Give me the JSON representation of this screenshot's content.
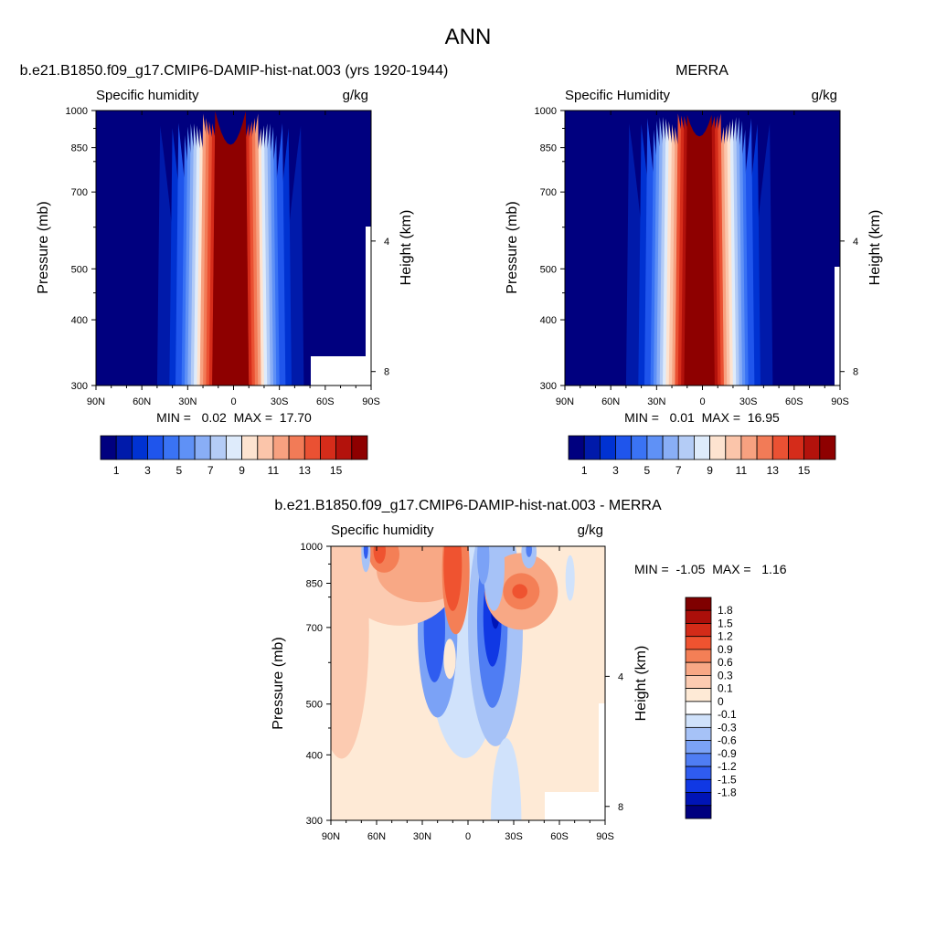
{
  "page": {
    "title": "ANN"
  },
  "colors": {
    "abs_fill": [
      "#00007f",
      "#001aaa",
      "#0032d2",
      "#1f55ec",
      "#3a73f4",
      "#5f91f6",
      "#89aef6",
      "#b4ccf6",
      "#deebfb",
      "#fde3d0",
      "#fbc5aa",
      "#f7a180",
      "#f27b57",
      "#ea5133",
      "#d52c1a",
      "#b3120c",
      "#8e0000"
    ],
    "diff_fill": [
      "#00007f",
      "#0014b6",
      "#1038e4",
      "#2f5cf0",
      "#4f7df3",
      "#7ba2f6",
      "#a6c2f7",
      "#d0e2fb",
      "#ffffff",
      "#feead6",
      "#fccbb1",
      "#f8a885",
      "#f47f56",
      "#ef5330",
      "#d32b18",
      "#ab0f0a",
      "#7f0000"
    ]
  },
  "chart_data": [
    {
      "type": "heatmap",
      "title": "b.e21.B1850.f09_g17.CMIP6-DAMIP-hist-nat.003 (yrs 1920-1944)",
      "left_label": "Specific humidity",
      "right_label": "g/kg",
      "ylabel": "Pressure (mb)",
      "y2label": "Height (km)",
      "x_ticks": [
        "90N",
        "60N",
        "30N",
        "0",
        "30S",
        "60S",
        "90S"
      ],
      "y_ticks": [
        "300",
        "400",
        "500",
        "700",
        "850",
        "1000"
      ],
      "y2_ticks": [
        "8",
        "4"
      ],
      "stats": "MIN =   0.02  MAX =  17.70",
      "levels": [
        "1",
        "3",
        "5",
        "7",
        "9",
        "11",
        "13",
        "15"
      ],
      "min": 0.02,
      "max": 17.7,
      "peak": 17.7,
      "peak_lat": 2,
      "xlim": [
        90,
        -90
      ],
      "ylim": [
        1000,
        300
      ]
    },
    {
      "type": "heatmap",
      "title": "MERRA",
      "left_label": "Specific Humidity",
      "right_label": "g/kg",
      "ylabel": "Pressure (mb)",
      "y2label": "Height (km)",
      "x_ticks": [
        "90N",
        "60N",
        "30N",
        "0",
        "30S",
        "60S",
        "90S"
      ],
      "y_ticks": [
        "300",
        "400",
        "500",
        "700",
        "850",
        "1000"
      ],
      "y2_ticks": [
        "8",
        "4"
      ],
      "stats": "MIN =   0.01  MAX =  16.95",
      "levels": [
        "1",
        "3",
        "5",
        "7",
        "9",
        "11",
        "13",
        "15"
      ],
      "min": 0.01,
      "max": 16.95,
      "peak": 16.95,
      "peak_lat": 2,
      "xlim": [
        90,
        -90
      ],
      "ylim": [
        1000,
        300
      ]
    },
    {
      "type": "heatmap",
      "title": "b.e21.B1850.f09_g17.CMIP6-DAMIP-hist-nat.003 - MERRA",
      "left_label": "Specific humidity",
      "right_label": "g/kg",
      "ylabel": "Pressure (mb)",
      "y2label": "Height (km)",
      "x_ticks": [
        "90N",
        "60N",
        "30N",
        "0",
        "30S",
        "60S",
        "90S"
      ],
      "y_ticks": [
        "300",
        "400",
        "500",
        "700",
        "850",
        "1000"
      ],
      "y2_ticks": [
        "8",
        "4"
      ],
      "stats": "MIN =  -1.05  MAX =   1.16",
      "levels": [
        "1.8",
        "1.5",
        "1.2",
        "0.9",
        "0.6",
        "0.3",
        "0.1",
        "0",
        "-0.1",
        "-0.3",
        "-0.6",
        "-0.9",
        "-1.2",
        "-1.5",
        "-1.8"
      ],
      "min": -1.05,
      "max": 1.16,
      "xlim": [
        90,
        -90
      ],
      "ylim": [
        1000,
        300
      ]
    }
  ]
}
